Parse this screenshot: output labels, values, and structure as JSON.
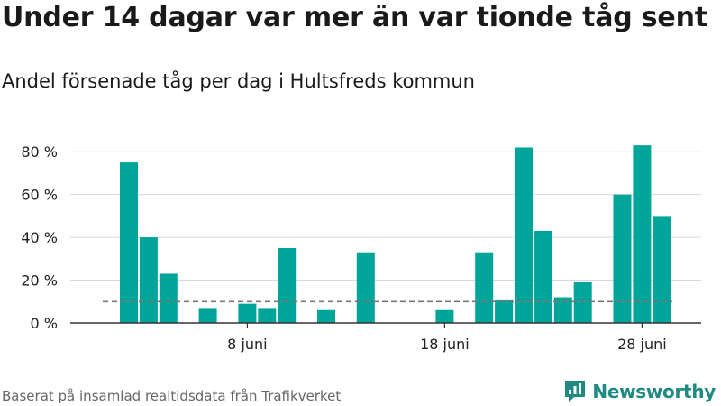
{
  "header": {
    "title": "Under 14 dagar var mer än var tionde tåg sent",
    "subtitle": "Andel försenade tåg per dag i Hultsfreds kommun"
  },
  "footer": {
    "source": "Baserat på insamlad realtidsdata från Trafikverket",
    "brand": "Newsworthy",
    "brand_icon": "newsworthy-logo-icon"
  },
  "colors": {
    "bar": "#00a59a",
    "reference_line": "#777777",
    "grid": "#d9d9d9",
    "brand": "#1f8a82"
  },
  "chart_data": {
    "type": "bar",
    "title": "",
    "xlabel": "",
    "ylabel": "",
    "x": [
      "2 juni",
      "3 juni",
      "4 juni",
      "5 juni",
      "6 juni",
      "7 juni",
      "8 juni",
      "9 juni",
      "10 juni",
      "11 juni",
      "12 juni",
      "13 juni",
      "14 juni",
      "15 juni",
      "16 juni",
      "17 juni",
      "18 juni",
      "19 juni",
      "20 juni",
      "21 juni",
      "22 juni",
      "23 juni",
      "24 juni",
      "25 juni",
      "26 juni",
      "27 juni",
      "28 juni",
      "29 juni"
    ],
    "values": [
      75,
      40,
      23,
      0,
      7,
      0,
      9,
      7,
      35,
      0,
      6,
      0,
      33,
      0,
      0,
      0,
      6,
      0,
      33,
      11,
      82,
      43,
      12,
      19,
      0,
      60,
      83,
      50
    ],
    "xticks": [
      {
        "at": "8 juni",
        "label": "8 juni"
      },
      {
        "at": "18 juni",
        "label": "18 juni"
      },
      {
        "at": "28 juni",
        "label": "28 juni"
      }
    ],
    "yticks": [
      {
        "value": 0,
        "label": "0 %"
      },
      {
        "value": 20,
        "label": "20 %"
      },
      {
        "value": 40,
        "label": "40 %"
      },
      {
        "value": 60,
        "label": "60 %"
      },
      {
        "value": 80,
        "label": "80 %"
      }
    ],
    "ylim": [
      0,
      86
    ],
    "reference_line": {
      "value": 10,
      "style": "dashed"
    },
    "grid": true,
    "legend": "none"
  }
}
